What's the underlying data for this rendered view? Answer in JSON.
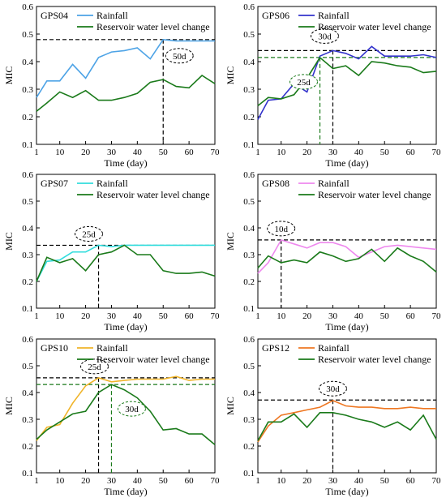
{
  "chart_data": [
    {
      "type": "line",
      "panel": "GPS04",
      "xlabel": "Time (day)",
      "ylabel": "MIC",
      "xlim": [
        1,
        70
      ],
      "ylim": [
        0.1,
        0.6
      ],
      "xticks": [
        1,
        10,
        20,
        30,
        40,
        50,
        60,
        70
      ],
      "yticks": [
        0.1,
        0.2,
        0.3,
        0.4,
        0.5,
        0.6
      ],
      "legend_position": "top-left",
      "series": [
        {
          "name": "Rainfall",
          "color": "#4da3e6",
          "x": [
            1,
            5,
            10,
            15,
            20,
            25,
            30,
            35,
            40,
            45,
            50,
            55,
            60,
            65,
            70
          ],
          "y": [
            0.27,
            0.33,
            0.33,
            0.39,
            0.34,
            0.415,
            0.435,
            0.44,
            0.45,
            0.41,
            0.48,
            0.475,
            0.475,
            0.475,
            0.475
          ]
        },
        {
          "name": "Reservoir water level change",
          "color": "#1a7a1a",
          "x": [
            1,
            5,
            10,
            15,
            20,
            25,
            30,
            35,
            40,
            45,
            50,
            55,
            60,
            65,
            70
          ],
          "y": [
            0.22,
            0.25,
            0.29,
            0.27,
            0.295,
            0.26,
            0.26,
            0.27,
            0.285,
            0.325,
            0.335,
            0.31,
            0.305,
            0.35,
            0.32
          ]
        }
      ],
      "lag_markers": [
        {
          "label": "50d",
          "x": 50,
          "y": 0.48,
          "color": "#000000"
        }
      ]
    },
    {
      "type": "line",
      "panel": "GPS06",
      "xlabel": "Time (day)",
      "ylabel": "MIC",
      "xlim": [
        1,
        70
      ],
      "ylim": [
        0.1,
        0.6
      ],
      "xticks": [
        1,
        10,
        20,
        30,
        40,
        50,
        60,
        70
      ],
      "yticks": [
        0.1,
        0.2,
        0.3,
        0.4,
        0.5,
        0.6
      ],
      "legend_position": "top-left",
      "series": [
        {
          "name": "Rainfall",
          "color": "#3333cc",
          "x": [
            1,
            5,
            10,
            15,
            20,
            25,
            30,
            35,
            40,
            45,
            50,
            55,
            60,
            65,
            70
          ],
          "y": [
            0.19,
            0.26,
            0.265,
            0.32,
            0.29,
            0.42,
            0.44,
            0.43,
            0.41,
            0.455,
            0.42,
            0.42,
            0.42,
            0.425,
            0.415
          ]
        },
        {
          "name": "Reservoir water level change",
          "color": "#1a7a1a",
          "x": [
            1,
            5,
            10,
            15,
            20,
            25,
            30,
            35,
            40,
            45,
            50,
            55,
            60,
            65,
            70
          ],
          "y": [
            0.24,
            0.27,
            0.265,
            0.28,
            0.34,
            0.415,
            0.375,
            0.385,
            0.35,
            0.4,
            0.395,
            0.385,
            0.38,
            0.36,
            0.365
          ]
        }
      ],
      "lag_markers": [
        {
          "label": "30d",
          "x": 30,
          "y": 0.44,
          "color": "#000000"
        },
        {
          "label": "25d",
          "x": 25,
          "y": 0.415,
          "color": "#1a7a1a"
        }
      ]
    },
    {
      "type": "line",
      "panel": "GPS07",
      "xlabel": "Time (day)",
      "ylabel": "MIC",
      "xlim": [
        1,
        70
      ],
      "ylim": [
        0.1,
        0.6
      ],
      "xticks": [
        1,
        10,
        20,
        30,
        40,
        50,
        60,
        70
      ],
      "yticks": [
        0.1,
        0.2,
        0.3,
        0.4,
        0.5,
        0.6
      ],
      "legend_position": "top-left",
      "series": [
        {
          "name": "Rainfall",
          "color": "#33dddd",
          "x": [
            1,
            5,
            10,
            15,
            20,
            25,
            30,
            35,
            40,
            45,
            50,
            55,
            60,
            65,
            70
          ],
          "y": [
            0.2,
            0.275,
            0.28,
            0.31,
            0.31,
            0.335,
            0.33,
            0.335,
            0.335,
            0.335,
            0.335,
            0.335,
            0.335,
            0.335,
            0.335
          ]
        },
        {
          "name": "Reservoir water level change",
          "color": "#1a7a1a",
          "x": [
            1,
            5,
            10,
            15,
            20,
            25,
            30,
            35,
            40,
            45,
            50,
            55,
            60,
            65,
            70
          ],
          "y": [
            0.2,
            0.29,
            0.27,
            0.285,
            0.24,
            0.3,
            0.31,
            0.335,
            0.3,
            0.3,
            0.24,
            0.23,
            0.23,
            0.235,
            0.22
          ]
        }
      ],
      "lag_markers": [
        {
          "label": "25d",
          "x": 25,
          "y": 0.335,
          "color": "#000000"
        }
      ]
    },
    {
      "type": "line",
      "panel": "GPS08",
      "xlabel": "Time (day)",
      "ylabel": "MIC",
      "xlim": [
        1,
        70
      ],
      "ylim": [
        0.1,
        0.6
      ],
      "xticks": [
        1,
        10,
        20,
        30,
        40,
        50,
        60,
        70
      ],
      "yticks": [
        0.1,
        0.2,
        0.3,
        0.4,
        0.5,
        0.6
      ],
      "legend_position": "top-left",
      "series": [
        {
          "name": "Rainfall",
          "color": "#ee88ee",
          "x": [
            1,
            5,
            10,
            15,
            20,
            25,
            30,
            35,
            40,
            45,
            50,
            55,
            60,
            65,
            70
          ],
          "y": [
            0.23,
            0.27,
            0.355,
            0.34,
            0.325,
            0.345,
            0.345,
            0.33,
            0.29,
            0.31,
            0.33,
            0.335,
            0.33,
            0.325,
            0.32
          ]
        },
        {
          "name": "Reservoir water level change",
          "color": "#1a7a1a",
          "x": [
            1,
            5,
            10,
            15,
            20,
            25,
            30,
            35,
            40,
            45,
            50,
            55,
            60,
            65,
            70
          ],
          "y": [
            0.25,
            0.295,
            0.27,
            0.28,
            0.27,
            0.31,
            0.295,
            0.275,
            0.285,
            0.32,
            0.275,
            0.325,
            0.295,
            0.275,
            0.235
          ]
        }
      ],
      "lag_markers": [
        {
          "label": "10d",
          "x": 10,
          "y": 0.355,
          "color": "#000000"
        }
      ]
    },
    {
      "type": "line",
      "panel": "GPS10",
      "xlabel": "Time (day)",
      "ylabel": "MIC",
      "xlim": [
        1,
        70
      ],
      "ylim": [
        0.1,
        0.6
      ],
      "xticks": [
        1,
        10,
        20,
        30,
        40,
        50,
        60,
        70
      ],
      "yticks": [
        0.1,
        0.2,
        0.3,
        0.4,
        0.5,
        0.6
      ],
      "legend_position": "top-left",
      "series": [
        {
          "name": "Rainfall",
          "color": "#f0b429",
          "x": [
            1,
            5,
            10,
            15,
            20,
            25,
            30,
            35,
            40,
            45,
            50,
            55,
            60,
            65,
            70
          ],
          "y": [
            0.22,
            0.27,
            0.28,
            0.36,
            0.425,
            0.455,
            0.44,
            0.445,
            0.45,
            0.45,
            0.45,
            0.46,
            0.445,
            0.45,
            0.45
          ]
        },
        {
          "name": "Reservoir water level change",
          "color": "#1a7a1a",
          "x": [
            1,
            5,
            10,
            15,
            20,
            25,
            30,
            35,
            40,
            45,
            50,
            55,
            60,
            65,
            70
          ],
          "y": [
            0.225,
            0.26,
            0.29,
            0.32,
            0.33,
            0.4,
            0.43,
            0.41,
            0.38,
            0.33,
            0.26,
            0.265,
            0.245,
            0.245,
            0.205
          ]
        }
      ],
      "lag_markers": [
        {
          "label": "25d",
          "x": 25,
          "y": 0.455,
          "color": "#000000"
        },
        {
          "label": "30d",
          "x": 30,
          "y": 0.43,
          "color": "#1a7a1a"
        }
      ]
    },
    {
      "type": "line",
      "panel": "GPS12",
      "xlabel": "Time (day)",
      "ylabel": "MIC",
      "xlim": [
        1,
        70
      ],
      "ylim": [
        0.1,
        0.6
      ],
      "xticks": [
        1,
        10,
        20,
        30,
        40,
        50,
        60,
        70
      ],
      "yticks": [
        0.1,
        0.2,
        0.3,
        0.4,
        0.5,
        0.6
      ],
      "legend_position": "top-left",
      "series": [
        {
          "name": "Rainfall",
          "color": "#ee7722",
          "x": [
            1,
            5,
            10,
            15,
            20,
            25,
            30,
            35,
            40,
            45,
            50,
            55,
            60,
            65,
            70
          ],
          "y": [
            0.215,
            0.275,
            0.315,
            0.325,
            0.335,
            0.345,
            0.37,
            0.35,
            0.345,
            0.345,
            0.34,
            0.34,
            0.345,
            0.34,
            0.34
          ]
        },
        {
          "name": "Reservoir water level change",
          "color": "#1a7a1a",
          "x": [
            1,
            5,
            10,
            15,
            20,
            25,
            30,
            35,
            40,
            45,
            50,
            55,
            60,
            65,
            70
          ],
          "y": [
            0.22,
            0.29,
            0.29,
            0.32,
            0.27,
            0.325,
            0.325,
            0.315,
            0.3,
            0.29,
            0.27,
            0.29,
            0.26,
            0.315,
            0.225
          ]
        }
      ],
      "lag_markers": [
        {
          "label": "30d",
          "x": 30,
          "y": 0.372,
          "color": "#000000"
        }
      ]
    }
  ]
}
